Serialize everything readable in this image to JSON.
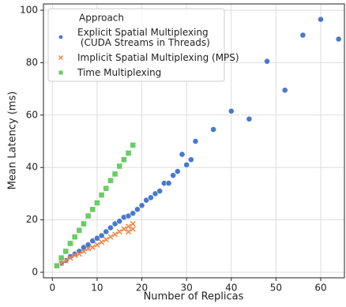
{
  "chart_data": {
    "type": "scatter",
    "xlabel": "Number of Replicas",
    "ylabel": "Mean Latency (ms)",
    "xlim": [
      -2,
      65.3
    ],
    "ylim": [
      -2.1,
      102.4
    ],
    "xticks": [
      0,
      10,
      20,
      30,
      40,
      50,
      60
    ],
    "yticks": [
      0,
      20,
      40,
      60,
      80,
      100
    ],
    "grid": true,
    "legend": {
      "title": "Approach",
      "loc": "upper left"
    },
    "series": [
      {
        "name": "Explicit Spatial Multiplexing\n (CUDA Streams in Threads)",
        "color": "#4878d0",
        "marker": "circle",
        "x": [
          1,
          2,
          3,
          4,
          5,
          6,
          7,
          8,
          9,
          10,
          11,
          12,
          13,
          14,
          15,
          16,
          17,
          18,
          19,
          20,
          21,
          22,
          23,
          24,
          25,
          26,
          27,
          28,
          29,
          30,
          31,
          32,
          36,
          40,
          44,
          48,
          52,
          56,
          60,
          64
        ],
        "values": [
          2.5,
          3.5,
          4.5,
          6,
          7,
          8,
          9.5,
          10.5,
          12,
          13,
          14,
          15.5,
          17,
          18.5,
          19.5,
          21,
          21.5,
          22.5,
          24,
          25.5,
          27.5,
          28.5,
          30,
          31,
          34,
          34,
          37,
          38.5,
          45,
          41,
          43,
          50,
          54.5,
          61.5,
          58.5,
          80.5,
          69.5,
          90.5,
          96.5,
          89
        ]
      },
      {
        "name": "Implicit Spatial Multiplexing (MPS)",
        "color": "#ee854a",
        "marker": "x",
        "x": [
          1,
          2,
          3,
          4,
          5,
          6,
          7,
          8,
          9,
          10,
          11,
          12,
          13,
          14,
          15,
          16,
          17,
          17,
          18,
          18
        ],
        "values": [
          2.5,
          3.5,
          4.5,
          5.5,
          6.5,
          7,
          8,
          9,
          9.5,
          10.5,
          11.5,
          12.5,
          13.5,
          14.5,
          15.5,
          16.5,
          17.5,
          15.5,
          18.5,
          16.5
        ]
      },
      {
        "name": "Time Multiplexing",
        "color": "#6acc64",
        "marker": "square",
        "x": [
          1,
          2,
          3,
          4,
          5,
          6,
          7,
          8,
          9,
          10,
          11,
          12,
          13,
          14,
          15,
          16,
          17,
          18
        ],
        "values": [
          2.5,
          5.5,
          8,
          11,
          13.5,
          16,
          18.5,
          21.5,
          24,
          26.5,
          29.5,
          32,
          35,
          37.5,
          40.5,
          43,
          45.5,
          48.5
        ]
      }
    ]
  }
}
